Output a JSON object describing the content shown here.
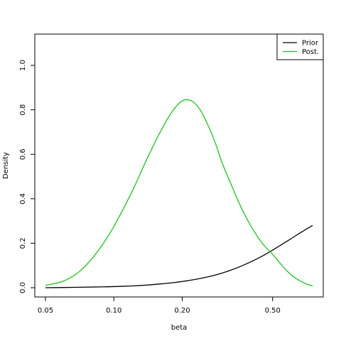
{
  "chart_data": {
    "type": "line",
    "xlabel": "beta",
    "ylabel": "Density",
    "xscale": "log",
    "xlim": [
      0.05,
      0.75
    ],
    "ylim": [
      0.0,
      1.1
    ],
    "xticks": [
      0.05,
      0.1,
      0.2,
      0.5
    ],
    "xtick_labels": [
      "0.05",
      "0.10",
      "0.20",
      "0.50"
    ],
    "yticks": [
      0.0,
      0.2,
      0.4,
      0.6,
      0.8,
      1.0
    ],
    "ytick_labels": [
      "0.0",
      "0.2",
      "0.4",
      "0.6",
      "0.8",
      "1.0"
    ],
    "grid": false,
    "legend_position": "top-right",
    "series": [
      {
        "name": "Prior",
        "color": "#000000",
        "x": [
          0.05,
          0.06,
          0.07,
          0.08,
          0.09,
          0.1,
          0.12,
          0.14,
          0.16,
          0.18,
          0.2,
          0.23,
          0.26,
          0.3,
          0.35,
          0.4,
          0.45,
          0.5,
          0.55,
          0.6,
          0.65,
          0.7,
          0.75
        ],
        "y": [
          0.0,
          0.001,
          0.002,
          0.003,
          0.004,
          0.005,
          0.008,
          0.012,
          0.017,
          0.022,
          0.028,
          0.038,
          0.049,
          0.066,
          0.09,
          0.116,
          0.142,
          0.169,
          0.195,
          0.219,
          0.242,
          0.262,
          0.28
        ]
      },
      {
        "name": "Post.",
        "color": "#1fc21f",
        "x": [
          0.05,
          0.06,
          0.07,
          0.08,
          0.09,
          0.1,
          0.12,
          0.14,
          0.16,
          0.18,
          0.2,
          0.22,
          0.24,
          0.26,
          0.28,
          0.3,
          0.33,
          0.36,
          0.4,
          0.45,
          0.5,
          0.55,
          0.6,
          0.65,
          0.7,
          0.75
        ],
        "y": [
          0.01,
          0.03,
          0.07,
          0.13,
          0.2,
          0.275,
          0.43,
          0.58,
          0.7,
          0.79,
          0.84,
          0.84,
          0.8,
          0.73,
          0.65,
          0.56,
          0.46,
          0.37,
          0.28,
          0.2,
          0.15,
          0.1,
          0.06,
          0.035,
          0.018,
          0.008
        ]
      }
    ]
  }
}
